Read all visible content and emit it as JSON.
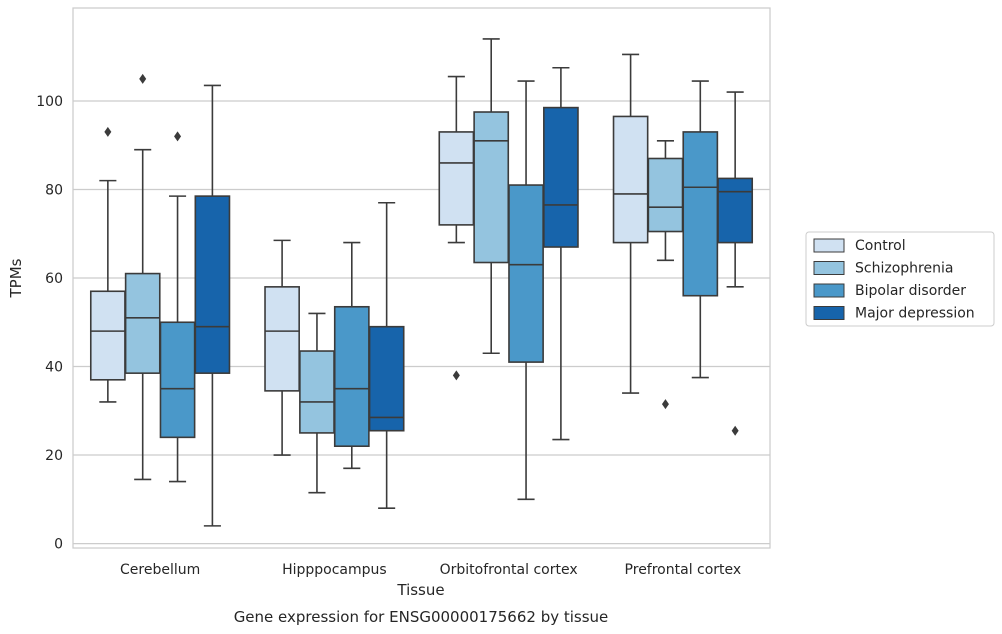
{
  "chart_data": {
    "type": "box",
    "title": "Gene expression for ENSG00000175662 by tissue",
    "xlabel": "Tissue",
    "ylabel": "TPMs",
    "ylim": [
      -1,
      121
    ],
    "yticks": [
      0,
      20,
      40,
      60,
      80,
      100
    ],
    "grid": true,
    "legend_position": "right",
    "categories": [
      "Cerebellum",
      "Hipppocampus",
      "Orbitofrontal cortex",
      "Prefrontal cortex"
    ],
    "series": [
      {
        "name": "Control",
        "color": "#d0e1f2",
        "boxes": [
          {
            "whisker_low": 32,
            "q1": 37,
            "median": 48,
            "q3": 57,
            "whisker_high": 82,
            "outliers": [
              93
            ]
          },
          {
            "whisker_low": 20,
            "q1": 34.5,
            "median": 48,
            "q3": 58,
            "whisker_high": 68.5,
            "outliers": []
          },
          {
            "whisker_low": 68,
            "q1": 72,
            "median": 86,
            "q3": 93,
            "whisker_high": 105.5,
            "outliers": [
              38
            ]
          },
          {
            "whisker_low": 34,
            "q1": 68,
            "median": 79,
            "q3": 96.5,
            "whisker_high": 110.5,
            "outliers": []
          }
        ]
      },
      {
        "name": "Schizophrenia",
        "color": "#94c4df",
        "boxes": [
          {
            "whisker_low": 14.5,
            "q1": 38.5,
            "median": 51,
            "q3": 61,
            "whisker_high": 89,
            "outliers": [
              105
            ]
          },
          {
            "whisker_low": 11.5,
            "q1": 25,
            "median": 32,
            "q3": 43.5,
            "whisker_high": 52,
            "outliers": []
          },
          {
            "whisker_low": 43,
            "q1": 63.5,
            "median": 91,
            "q3": 97.5,
            "whisker_high": 114,
            "outliers": []
          },
          {
            "whisker_low": 64,
            "q1": 70.5,
            "median": 76,
            "q3": 87,
            "whisker_high": 91,
            "outliers": [
              31.5
            ]
          }
        ]
      },
      {
        "name": "Bipolar disorder",
        "color": "#4a98c9",
        "boxes": [
          {
            "whisker_low": 14,
            "q1": 24,
            "median": 35,
            "q3": 50,
            "whisker_high": 78.5,
            "outliers": [
              92
            ]
          },
          {
            "whisker_low": 17,
            "q1": 22,
            "median": 35,
            "q3": 53.5,
            "whisker_high": 68,
            "outliers": []
          },
          {
            "whisker_low": 10,
            "q1": 41,
            "median": 63,
            "q3": 81,
            "whisker_high": 104.5,
            "outliers": []
          },
          {
            "whisker_low": 37.5,
            "q1": 56,
            "median": 80.5,
            "q3": 93,
            "whisker_high": 104.5,
            "outliers": []
          }
        ]
      },
      {
        "name": "Major depression",
        "color": "#1764ab",
        "boxes": [
          {
            "whisker_low": 4,
            "q1": 38.5,
            "median": 49,
            "q3": 78.5,
            "whisker_high": 103.5,
            "outliers": []
          },
          {
            "whisker_low": 8,
            "q1": 25.5,
            "median": 28.5,
            "q3": 49,
            "whisker_high": 77,
            "outliers": []
          },
          {
            "whisker_low": 23.5,
            "q1": 67,
            "median": 76.5,
            "q3": 98.5,
            "whisker_high": 107.5,
            "outliers": []
          },
          {
            "whisker_low": 58,
            "q1": 68,
            "median": 79.5,
            "q3": 82.5,
            "whisker_high": 102,
            "outliers": [
              25.5
            ]
          }
        ]
      }
    ]
  }
}
